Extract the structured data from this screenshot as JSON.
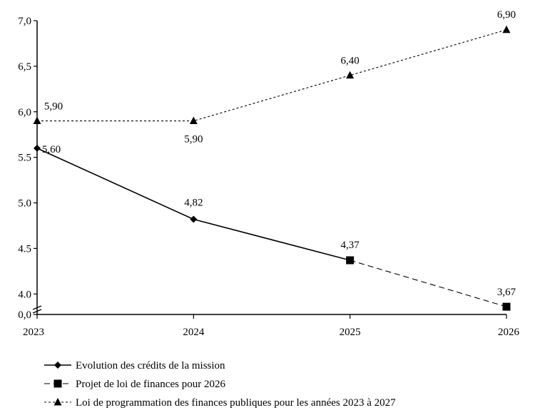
{
  "chart_data": {
    "type": "line",
    "categories": [
      "2023",
      "2024",
      "2025",
      "2026"
    ],
    "y_ticks": [
      "0,0",
      "4.0",
      "4.5",
      "5.0",
      "5.5",
      "6,0",
      "6,5",
      "7,0"
    ],
    "y_tick_values": [
      3.775,
      4.0,
      4.5,
      5.0,
      5.5,
      6.0,
      6.5,
      7.0
    ],
    "axis_break": true,
    "ylim": [
      3.775,
      7.0
    ],
    "grid": false,
    "legend_position": "bottom-left",
    "series": [
      {
        "name": "Evolution des crédits de la mission",
        "style": "solid",
        "marker": "diamond",
        "x": [
          "2023",
          "2024",
          "2025"
        ],
        "values": [
          5.6,
          4.82,
          4.37
        ],
        "labels": [
          "5,60",
          "4,82",
          null
        ]
      },
      {
        "name": "Projet de loi de finances pour 2026",
        "style": "dashed",
        "marker": "square",
        "x": [
          "2025",
          "2026"
        ],
        "values": [
          4.37,
          3.67
        ],
        "plotted_values": [
          4.37,
          3.86
        ],
        "labels": [
          "4,37",
          "3,67"
        ]
      },
      {
        "name": "Loi de programmation des finances publiques pour les années 2023 à 2027",
        "style": "dotted",
        "marker": "triangle",
        "x": [
          "2023",
          "2024",
          "2025",
          "2026"
        ],
        "values": [
          5.9,
          5.9,
          6.4,
          6.9
        ],
        "labels": [
          "5,90",
          "5,90",
          "6,40",
          "6,90"
        ]
      }
    ]
  }
}
